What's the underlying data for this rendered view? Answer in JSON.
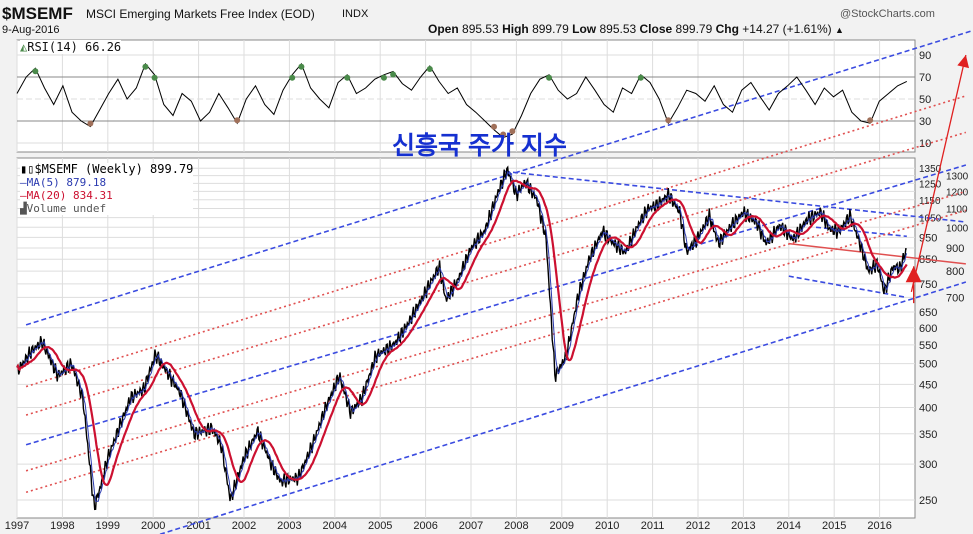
{
  "header": {
    "symbol": "$MSEMF",
    "name": "MSCI Emerging Markets Free Index (EOD)",
    "exchange": "INDX",
    "date": "9-Aug-2016",
    "brand": "@StockCharts.com",
    "open_label": "Open",
    "open": "895.53",
    "high_label": "High",
    "high": "899.79",
    "low_label": "Low",
    "low": "895.53",
    "close_label": "Close",
    "close": "899.79",
    "chg_label": "Chg",
    "chg": "+14.27 (+1.61%)",
    "chg_arrow": "▲"
  },
  "annotation_title": "신흥국 주가 지수",
  "legend": {
    "rsi": "RSI(14) 66.26",
    "price": "$MSEMF (Weekly) 899.79",
    "ma5": "MA(5) 879.18",
    "ma20": "MA(20) 834.31",
    "volume": "Volume undef"
  },
  "colors": {
    "price": "#000000",
    "ma5": "#2b3bb0",
    "ma20": "#cc1030",
    "trend_blue": "#3a4be0",
    "trend_red": "#e05050",
    "rsi_fill": "#4a8a4a",
    "rsi_fill_low": "#a0705a"
  },
  "chart_data": [
    {
      "type": "line",
      "title": "$MSEMF (Weekly)",
      "scale": "log",
      "ylim": [
        230,
        1400
      ],
      "xlim": [
        1996.95,
        2016.8
      ],
      "y_ticks": [
        "1350",
        "1300",
        "1250",
        "1200",
        "1150",
        "1100",
        "1050",
        "1000",
        "950",
        "900",
        "850",
        "800",
        "750",
        "700",
        "650",
        "600",
        "550",
        "500",
        "450",
        "400",
        "350",
        "300",
        "250"
      ],
      "x_ticks": [
        "1997",
        "1998",
        "1999",
        "2000",
        "2001",
        "2002",
        "2003",
        "2004",
        "2005",
        "2006",
        "2007",
        "2008",
        "2009",
        "2010",
        "2011",
        "2012",
        "2013",
        "2014",
        "2015",
        "2016"
      ],
      "series": [
        {
          "name": "$MSEMF",
          "points": [
            [
              1997.0,
              480
            ],
            [
              1997.3,
              530
            ],
            [
              1997.55,
              560
            ],
            [
              1997.9,
              470
            ],
            [
              1998.2,
              500
            ],
            [
              1998.45,
              420
            ],
            [
              1998.7,
              240
            ],
            [
              1998.85,
              270
            ],
            [
              1999.0,
              310
            ],
            [
              1999.5,
              420
            ],
            [
              1999.8,
              440
            ],
            [
              2000.05,
              525
            ],
            [
              2000.3,
              480
            ],
            [
              2000.6,
              430
            ],
            [
              2000.9,
              350
            ],
            [
              2001.3,
              360
            ],
            [
              2001.5,
              330
            ],
            [
              2001.7,
              250
            ],
            [
              2002.0,
              310
            ],
            [
              2002.3,
              355
            ],
            [
              2002.6,
              300
            ],
            [
              2002.8,
              275
            ],
            [
              2003.2,
              280
            ],
            [
              2003.5,
              330
            ],
            [
              2003.8,
              400
            ],
            [
              2004.1,
              470
            ],
            [
              2004.35,
              390
            ],
            [
              2004.6,
              420
            ],
            [
              2004.9,
              520
            ],
            [
              2005.3,
              550
            ],
            [
              2005.6,
              610
            ],
            [
              2005.9,
              690
            ],
            [
              2006.3,
              820
            ],
            [
              2006.45,
              690
            ],
            [
              2006.7,
              760
            ],
            [
              2007.0,
              900
            ],
            [
              2007.3,
              980
            ],
            [
              2007.6,
              1200
            ],
            [
              2007.8,
              1340
            ],
            [
              2008.0,
              1180
            ],
            [
              2008.2,
              1260
            ],
            [
              2008.45,
              1150
            ],
            [
              2008.65,
              950
            ],
            [
              2008.85,
              470
            ],
            [
              2009.1,
              520
            ],
            [
              2009.35,
              700
            ],
            [
              2009.6,
              850
            ],
            [
              2009.9,
              980
            ],
            [
              2010.1,
              930
            ],
            [
              2010.4,
              880
            ],
            [
              2010.7,
              1020
            ],
            [
              2010.9,
              1100
            ],
            [
              2011.1,
              1120
            ],
            [
              2011.35,
              1180
            ],
            [
              2011.6,
              1080
            ],
            [
              2011.75,
              880
            ],
            [
              2012.0,
              950
            ],
            [
              2012.25,
              1060
            ],
            [
              2012.45,
              920
            ],
            [
              2012.7,
              1000
            ],
            [
              2013.0,
              1080
            ],
            [
              2013.3,
              1020
            ],
            [
              2013.5,
              920
            ],
            [
              2013.8,
              1010
            ],
            [
              2014.1,
              940
            ],
            [
              2014.4,
              1040
            ],
            [
              2014.7,
              1080
            ],
            [
              2014.9,
              990
            ],
            [
              2015.1,
              980
            ],
            [
              2015.35,
              1060
            ],
            [
              2015.6,
              900
            ],
            [
              2015.75,
              800
            ],
            [
              2015.95,
              830
            ],
            [
              2016.1,
              720
            ],
            [
              2016.3,
              820
            ],
            [
              2016.45,
              810
            ],
            [
              2016.6,
              900
            ]
          ]
        }
      ],
      "moving_averages": [
        {
          "name": "MA(5)",
          "period": 5,
          "last": 879.18
        },
        {
          "name": "MA(20)",
          "period": 20,
          "last": 834.31
        }
      ],
      "trendlines": [
        {
          "color": "blue",
          "style": "dashed",
          "from": [
            2000.15,
            210
          ],
          "to": [
            2017.9,
            757
          ]
        },
        {
          "color": "blue",
          "style": "dashed",
          "from": [
            1997.2,
            331
          ],
          "to": [
            2017.9,
            1372
          ]
        },
        {
          "color": "blue",
          "style": "dashed",
          "from": [
            1997.2,
            609
          ],
          "to": [
            2018.1,
            2727
          ]
        },
        {
          "color": "blue",
          "style": "dashed",
          "from": [
            2007.75,
            1328
          ],
          "to": [
            2017.9,
            1027
          ]
        },
        {
          "color": "blue",
          "style": "dashed",
          "from": [
            2014.0,
            780
          ],
          "to": [
            2016.6,
            700
          ]
        },
        {
          "color": "blue",
          "style": "dashed",
          "from": [
            2014.6,
            1000
          ],
          "to": [
            2016.6,
            955
          ]
        },
        {
          "color": "red",
          "style": "dotted",
          "from": [
            1997.2,
            445
          ],
          "to": [
            2017.9,
            1950
          ]
        },
        {
          "color": "red",
          "style": "dotted",
          "from": [
            1997.2,
            385
          ],
          "to": [
            2017.9,
            1620
          ]
        },
        {
          "color": "red",
          "style": "dotted",
          "from": [
            1997.2,
            290
          ],
          "to": [
            2017.9,
            1200
          ]
        },
        {
          "color": "red",
          "style": "dotted",
          "from": [
            1997.2,
            260
          ],
          "to": [
            2017.9,
            1090
          ]
        },
        {
          "color": "red",
          "style": "solid",
          "from": [
            2014.0,
            920
          ],
          "to": [
            2017.9,
            830
          ]
        }
      ],
      "arrows": [
        {
          "color": "red",
          "from": [
            2016.7,
            720
          ],
          "to": [
            2017.9,
            2400
          ]
        },
        {
          "color": "red",
          "from": [
            2016.75,
            680
          ],
          "to": [
            2016.75,
            820
          ]
        }
      ]
    },
    {
      "type": "line",
      "title": "RSI(14)",
      "ylim": [
        0,
        100
      ],
      "y_ticks": [
        "90",
        "70",
        "50",
        "30",
        "10"
      ],
      "last": 66.26,
      "series": [
        {
          "name": "RSI(14)",
          "values": [
            55,
            70,
            78,
            60,
            45,
            62,
            38,
            30,
            25,
            40,
            55,
            68,
            50,
            60,
            82,
            72,
            45,
            35,
            55,
            48,
            30,
            38,
            55,
            42,
            28,
            50,
            62,
            45,
            36,
            58,
            72,
            82,
            60,
            50,
            42,
            65,
            72,
            55,
            60,
            68,
            72,
            75,
            64,
            58,
            70,
            80,
            66,
            55,
            60,
            45,
            38,
            30,
            22,
            15,
            18,
            35,
            55,
            68,
            72,
            58,
            50,
            55,
            70,
            58,
            45,
            38,
            60,
            55,
            72,
            65,
            50,
            28,
            42,
            58,
            55,
            48,
            62,
            45,
            38,
            58,
            65,
            52,
            40,
            55,
            62,
            70,
            58,
            45,
            60,
            52,
            58,
            38,
            30,
            28,
            48,
            55,
            62,
            66
          ]
        }
      ]
    }
  ]
}
